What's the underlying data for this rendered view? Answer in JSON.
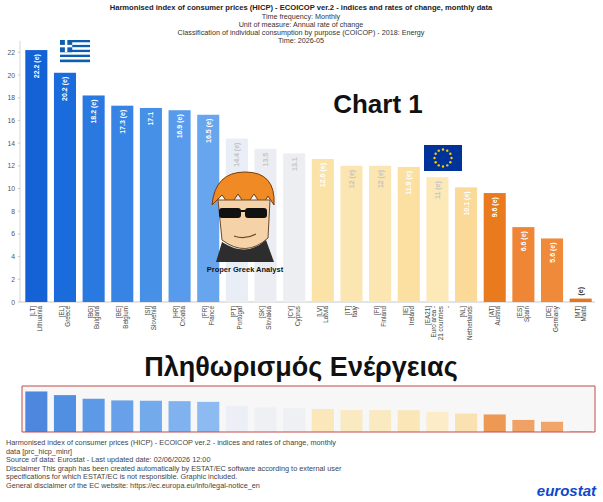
{
  "chart_data": {
    "type": "bar",
    "title": "Harmonised index of consumer prices (HICP) - ECOICOP ver.2 - indices and rates of change, monthly data",
    "subtitle": [
      "Time frequency: Monthly",
      "Unit of measure: Annual rate of change",
      "Classification of individual consumption by purpose (COICOP) - 2018: Energy",
      "Time: 2026-05"
    ],
    "categories": [
      "[LT] Lithuania",
      "[EL] Greece",
      "[BG] Bulgaria",
      "[BE] Belgium",
      "[SI] Slovenia",
      "[HR] Croatia",
      "[FR] France",
      "[PT] Portugal",
      "[SK] Slovakia",
      "[CY] Cyprus",
      "[LV] Latvia",
      "[IT] Italy",
      "[FI] Finland",
      "[IE] Ireland",
      "[EA21] Euro area - 21 countries -",
      "[NL] Netherlands",
      "[AT] Austria",
      "[ES] Spain",
      "[DE] Germany",
      "[MT] Malta"
    ],
    "values": [
      22.2,
      20.2,
      18.2,
      17.3,
      17.1,
      16.9,
      16.5,
      14.4,
      13.5,
      13.1,
      12.6,
      12,
      12,
      11.9,
      11,
      10.1,
      9.6,
      6.6,
      5.6,
      0.3
    ],
    "value_labels": [
      "22.2 (e)",
      "20.2 (e)",
      "18.2 (e)",
      "17.3 (e)",
      "17.1",
      "16.9 (e)",
      "16.5 (e)",
      "14.4 (e)",
      "13.5",
      "13.1",
      "12.6 (e)",
      "12 (e)",
      "12 (e)",
      "11.9 (e)",
      "11 (e)",
      "10.1 (e)",
      "9.6 (e)",
      "6.6 (e)",
      "5.6 (e)",
      "(e)"
    ],
    "colors": [
      "#1462d6",
      "#1a6cdc",
      "#2a79e0",
      "#3884e4",
      "#4790e8",
      "#589bec",
      "#68a5ef",
      "#e8edf6",
      "#ebedf2",
      "#eceef2",
      "#fbe2a6",
      "#fbe5b0",
      "#fbe5b0",
      "#fbe0a2",
      "#fde8b8",
      "#fad999",
      "#ea7a1e",
      "#ee8636",
      "#ef8a3a",
      "#e8751a"
    ],
    "ylim": [
      0,
      23
    ],
    "yticks": [
      0,
      2,
      4,
      6,
      8,
      10,
      12,
      14,
      16,
      18,
      20,
      22
    ],
    "grid": false,
    "data_labels": true,
    "annotations": [
      "Chart 1",
      "Proper Greek Analyst",
      "Πληθωρισμός Ενέργειας"
    ]
  },
  "footer": [
    "Harmonised index of consumer prices (HICP) - ECOICOP ver.2 - indices and rates of change, monthly",
    "data [prc_hicp_minr]",
    "Source of data: Eurostat - Last updated date: 02/06/2026 12:00",
    "Disclaimer This graph has been created automatically by ESTAT/EC software according to external user",
    "specifications for which ESTAT/EC is not responsible. Graphic included.",
    "General disclaimer of the EC website: https://ec.europa.eu/info/legal-notice_en"
  ],
  "logo": "eurostat"
}
